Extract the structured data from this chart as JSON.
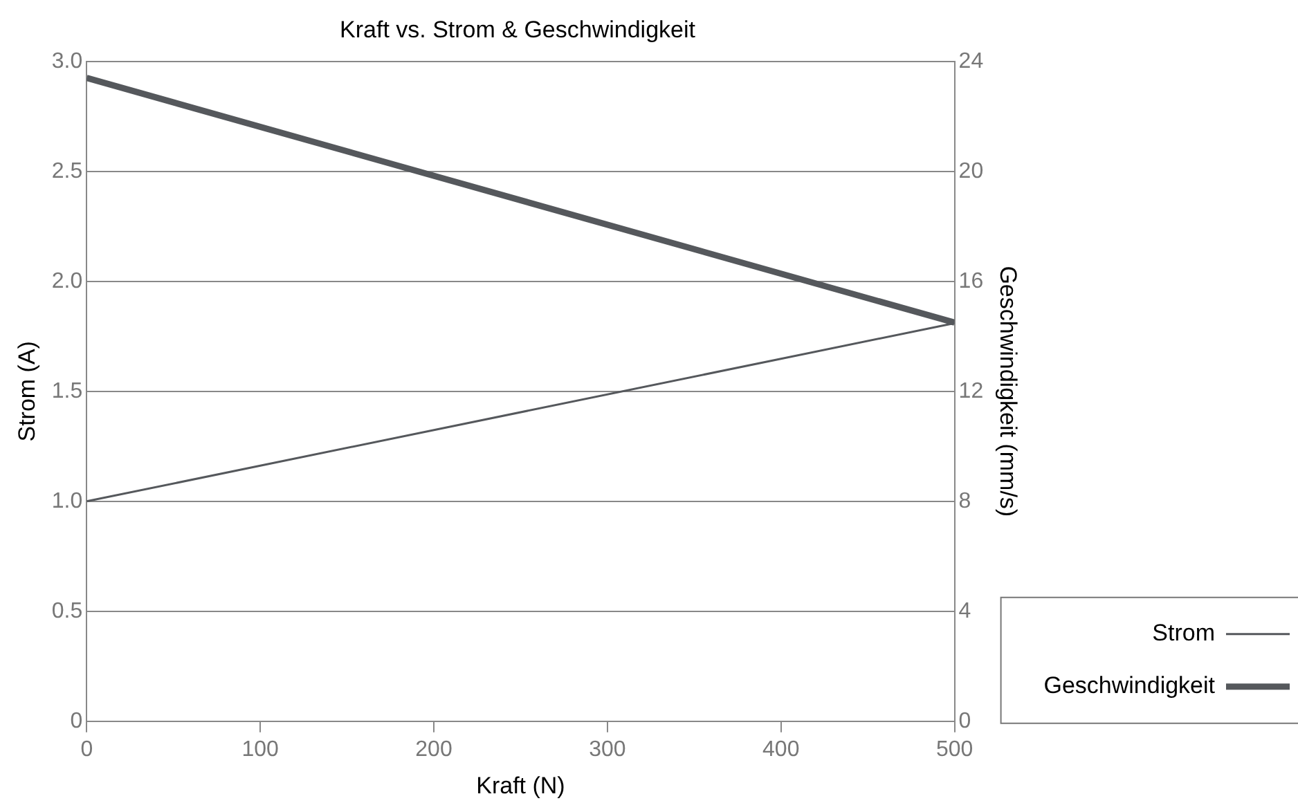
{
  "chart_data": {
    "type": "line",
    "title": "Kraft vs. Strom & Geschwindigkeit",
    "xlabel": "Kraft (N)",
    "ylabel": "Strom (A)",
    "y2label": "Geschwindigkeit (mm/s)",
    "x": [
      0,
      500
    ],
    "series": [
      {
        "name": "Strom",
        "color": "#55585c",
        "values": [
          1.0,
          1.81
        ]
      },
      {
        "name": "Geschwindigkeit",
        "color": "#55585c",
        "values": [
          23.4,
          14.5
        ],
        "axis": "y2"
      }
    ],
    "xlim": [
      0,
      500
    ],
    "xticks": [
      0,
      100,
      200,
      300,
      400,
      500
    ],
    "ylim": [
      0,
      3
    ],
    "yticks": [
      {
        "value": 0,
        "label": "0"
      },
      {
        "value": 0.5,
        "label": "0.5"
      },
      {
        "value": 1,
        "label": "1.0"
      },
      {
        "value": 1.5,
        "label": "1.5"
      },
      {
        "value": 2,
        "label": "2.0"
      },
      {
        "value": 2.5,
        "label": "2.5"
      },
      {
        "value": 3,
        "label": "3.0"
      }
    ],
    "y2lim": [
      0,
      24
    ],
    "y2ticks": [
      0,
      4,
      8,
      12,
      16,
      20,
      24
    ],
    "grid": "y",
    "legend": "bottom right",
    "marker": "none",
    "line_style": "solid"
  }
}
